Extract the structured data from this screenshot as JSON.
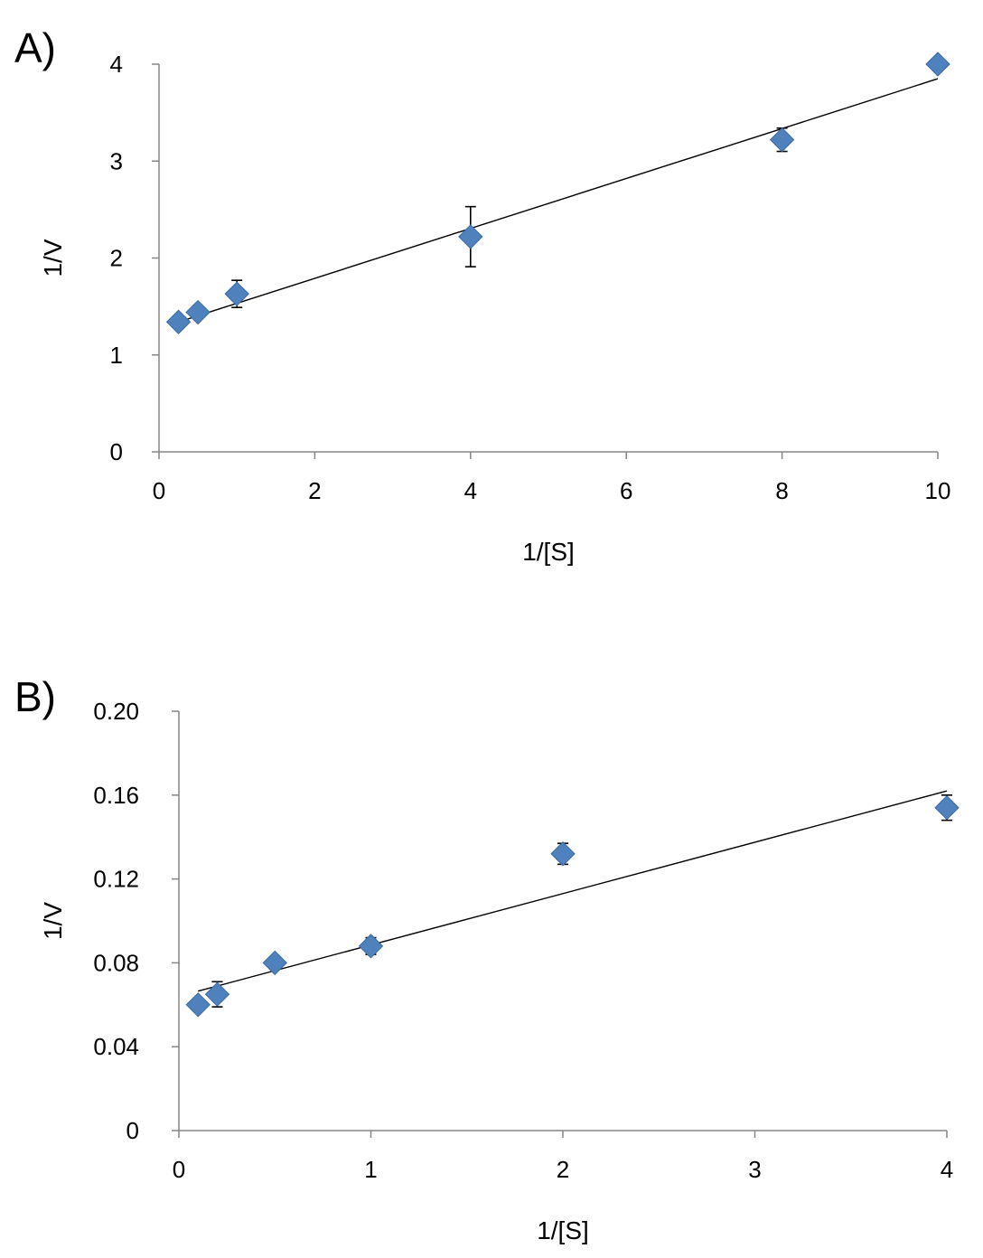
{
  "panels": [
    {
      "label": "A)"
    },
    {
      "label": "B)"
    }
  ],
  "colors": {
    "marker": "#4f81bd",
    "axis": "#868686",
    "trendline": "#000000"
  },
  "chart_data": [
    {
      "type": "scatter",
      "title": "",
      "xlabel": "1/[S]",
      "ylabel": "1/V",
      "xlim": [
        0,
        10
      ],
      "ylim": [
        0,
        4
      ],
      "x_ticks": [
        "0",
        "2",
        "4",
        "6",
        "8",
        "10"
      ],
      "y_ticks": [
        "0",
        "1",
        "2",
        "3",
        "4"
      ],
      "grid": false,
      "legend": "none",
      "series": [
        {
          "x": [
            0.25,
            0.5,
            1,
            4,
            8,
            10
          ],
          "y": [
            1.34,
            1.44,
            1.63,
            2.22,
            3.22,
            4.0
          ],
          "err": [
            0.02,
            0.03,
            0.14,
            0.31,
            0.12,
            0.02
          ]
        }
      ],
      "trendline": {
        "x": [
          0.25,
          10
        ],
        "y": [
          1.34,
          3.85
        ]
      }
    },
    {
      "type": "scatter",
      "title": "",
      "xlabel": "1/[S]",
      "ylabel": "1/V",
      "x_scale": "category-position",
      "xlim": [
        0,
        4
      ],
      "ylim": [
        0,
        0.2
      ],
      "x_ticks": [
        "0",
        "1",
        "2",
        "3",
        "4"
      ],
      "y_ticks": [
        "0",
        "0.04",
        "0.08",
        "0.12",
        "0.16",
        "0.20"
      ],
      "grid": false,
      "legend": "none",
      "series": [
        {
          "x": [
            0.1,
            0.2,
            0.5,
            1,
            2,
            4
          ],
          "y": [
            0.06,
            0.065,
            0.08,
            0.088,
            0.132,
            0.154
          ],
          "err": [
            0.002,
            0.006,
            0.002,
            0.004,
            0.005,
            0.006
          ]
        }
      ],
      "trendline": {
        "x": [
          0.1,
          4
        ],
        "y": [
          0.0665,
          0.162
        ]
      }
    }
  ]
}
